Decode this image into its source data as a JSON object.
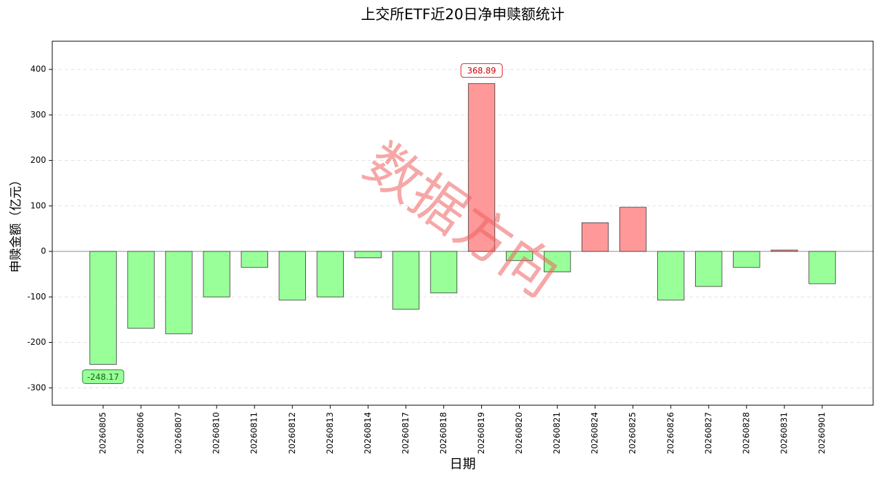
{
  "chart_data": {
    "type": "bar",
    "title": "上交所ETF近20日净申赎额统计",
    "x_label": "日期",
    "y_label": "申赎金额（亿元）",
    "watermark": "数据方向",
    "categories": [
      "20260805",
      "20260806",
      "20260807",
      "20260810",
      "20260811",
      "20260812",
      "20260813",
      "20260814",
      "20260817",
      "20260818",
      "20260819",
      "20260820",
      "20260821",
      "20260824",
      "20260825",
      "20260826",
      "20260827",
      "20260828",
      "20260831",
      "20260901"
    ],
    "values": [
      -248.17,
      -169,
      -181,
      -100,
      -35,
      -107,
      -100,
      -14,
      -127,
      -91,
      368.89,
      -20,
      -45,
      63,
      97,
      -107,
      -77,
      -35,
      3,
      -71
    ],
    "positive_color": "#ff9999",
    "negative_color": "#99ff99",
    "ylim": [
      -338,
      462
    ],
    "yticks": [
      -300,
      -200,
      -100,
      0,
      100,
      200,
      300,
      400
    ],
    "grid": true,
    "annotate_extremes": true
  }
}
